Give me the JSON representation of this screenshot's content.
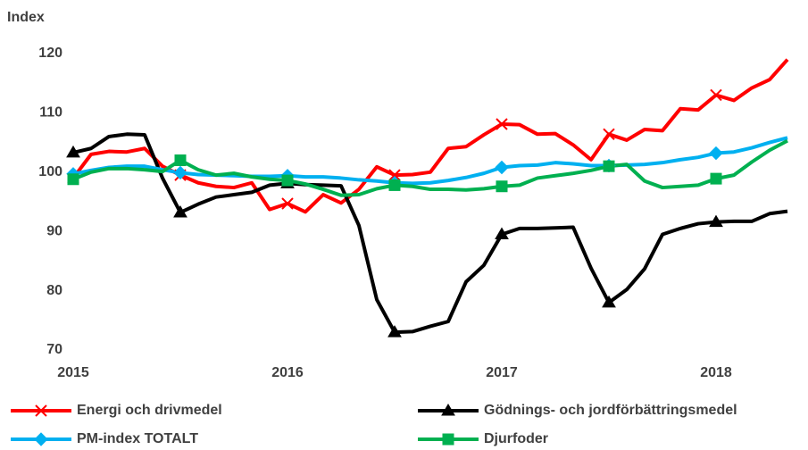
{
  "chart_data": {
    "type": "line",
    "y_label": "Index",
    "categories": [
      "2015",
      null,
      null,
      null,
      null,
      null,
      null,
      null,
      null,
      null,
      null,
      null,
      "2016",
      null,
      null,
      null,
      null,
      null,
      null,
      null,
      null,
      null,
      null,
      null,
      "2017",
      null,
      null,
      null,
      null,
      null,
      null,
      null,
      null,
      null,
      null,
      null,
      "2018",
      null,
      null,
      null,
      null
    ],
    "ylim": [
      70,
      120
    ],
    "yticks": [
      70,
      80,
      90,
      100,
      110,
      120
    ],
    "grid": false,
    "marker_every": 6,
    "legend": "bottom",
    "series": [
      {
        "name": "Energi och drivmedel",
        "color": "#ff0000",
        "marker": "x",
        "values": [
          99,
          103,
          103.5,
          103.4,
          104,
          101,
          99.5,
          98.2,
          97.6,
          97.4,
          98.2,
          93.7,
          94.7,
          93.3,
          96.2,
          94.8,
          97.1,
          100.9,
          99.5,
          99.6,
          100,
          104,
          104.3,
          106.3,
          108.1,
          108,
          106.4,
          106.5,
          104.6,
          102.1,
          106.4,
          105.4,
          107.2,
          107,
          110.7,
          110.5,
          113,
          112.1,
          114.2,
          115.6,
          119
        ]
      },
      {
        "name": "Gödnings- och jordförbättringsmedel",
        "color": "#000000",
        "marker": "triangle",
        "values": [
          103.3,
          104,
          106,
          106.4,
          106.3,
          99,
          93.2,
          94.6,
          95.8,
          96.2,
          96.6,
          97.8,
          98.1,
          97.9,
          97.8,
          97.7,
          91,
          78.5,
          73,
          73.1,
          74,
          74.8,
          81.5,
          84.3,
          89.5,
          90.5,
          90.5,
          90.6,
          90.7,
          83.8,
          78,
          80.2,
          83.7,
          89.5,
          90.5,
          91.3,
          91.6,
          91.7,
          91.7,
          93,
          93.4
        ]
      },
      {
        "name": "PM-index TOTALT",
        "color": "#00b0f0",
        "marker": "diamond",
        "values": [
          99.7,
          100.3,
          100.8,
          101,
          101,
          100.4,
          99.9,
          99.6,
          99.5,
          99.4,
          99.3,
          99.3,
          99.4,
          99.2,
          99.2,
          99,
          98.7,
          98.5,
          98.2,
          98.1,
          98.2,
          98.6,
          99.1,
          99.8,
          100.8,
          101.1,
          101.2,
          101.6,
          101.4,
          101.1,
          101.1,
          101.2,
          101.3,
          101.6,
          102.1,
          102.5,
          103.2,
          103.4,
          104.1,
          105,
          105.8
        ]
      },
      {
        "name": "Djurfoder",
        "color": "#00b050",
        "marker": "square",
        "values": [
          98.8,
          100,
          100.6,
          100.6,
          100.4,
          100.1,
          102,
          100.4,
          99.5,
          99.8,
          99.2,
          98.8,
          98.6,
          98,
          97.1,
          96.1,
          96.2,
          97.2,
          97.8,
          97.6,
          97.1,
          97.1,
          97,
          97.2,
          97.6,
          97.8,
          99,
          99.4,
          99.8,
          100.3,
          101,
          101.3,
          98.5,
          97.4,
          97.6,
          97.8,
          98.9,
          99.5,
          101.7,
          103.7,
          105.3
        ]
      }
    ]
  }
}
